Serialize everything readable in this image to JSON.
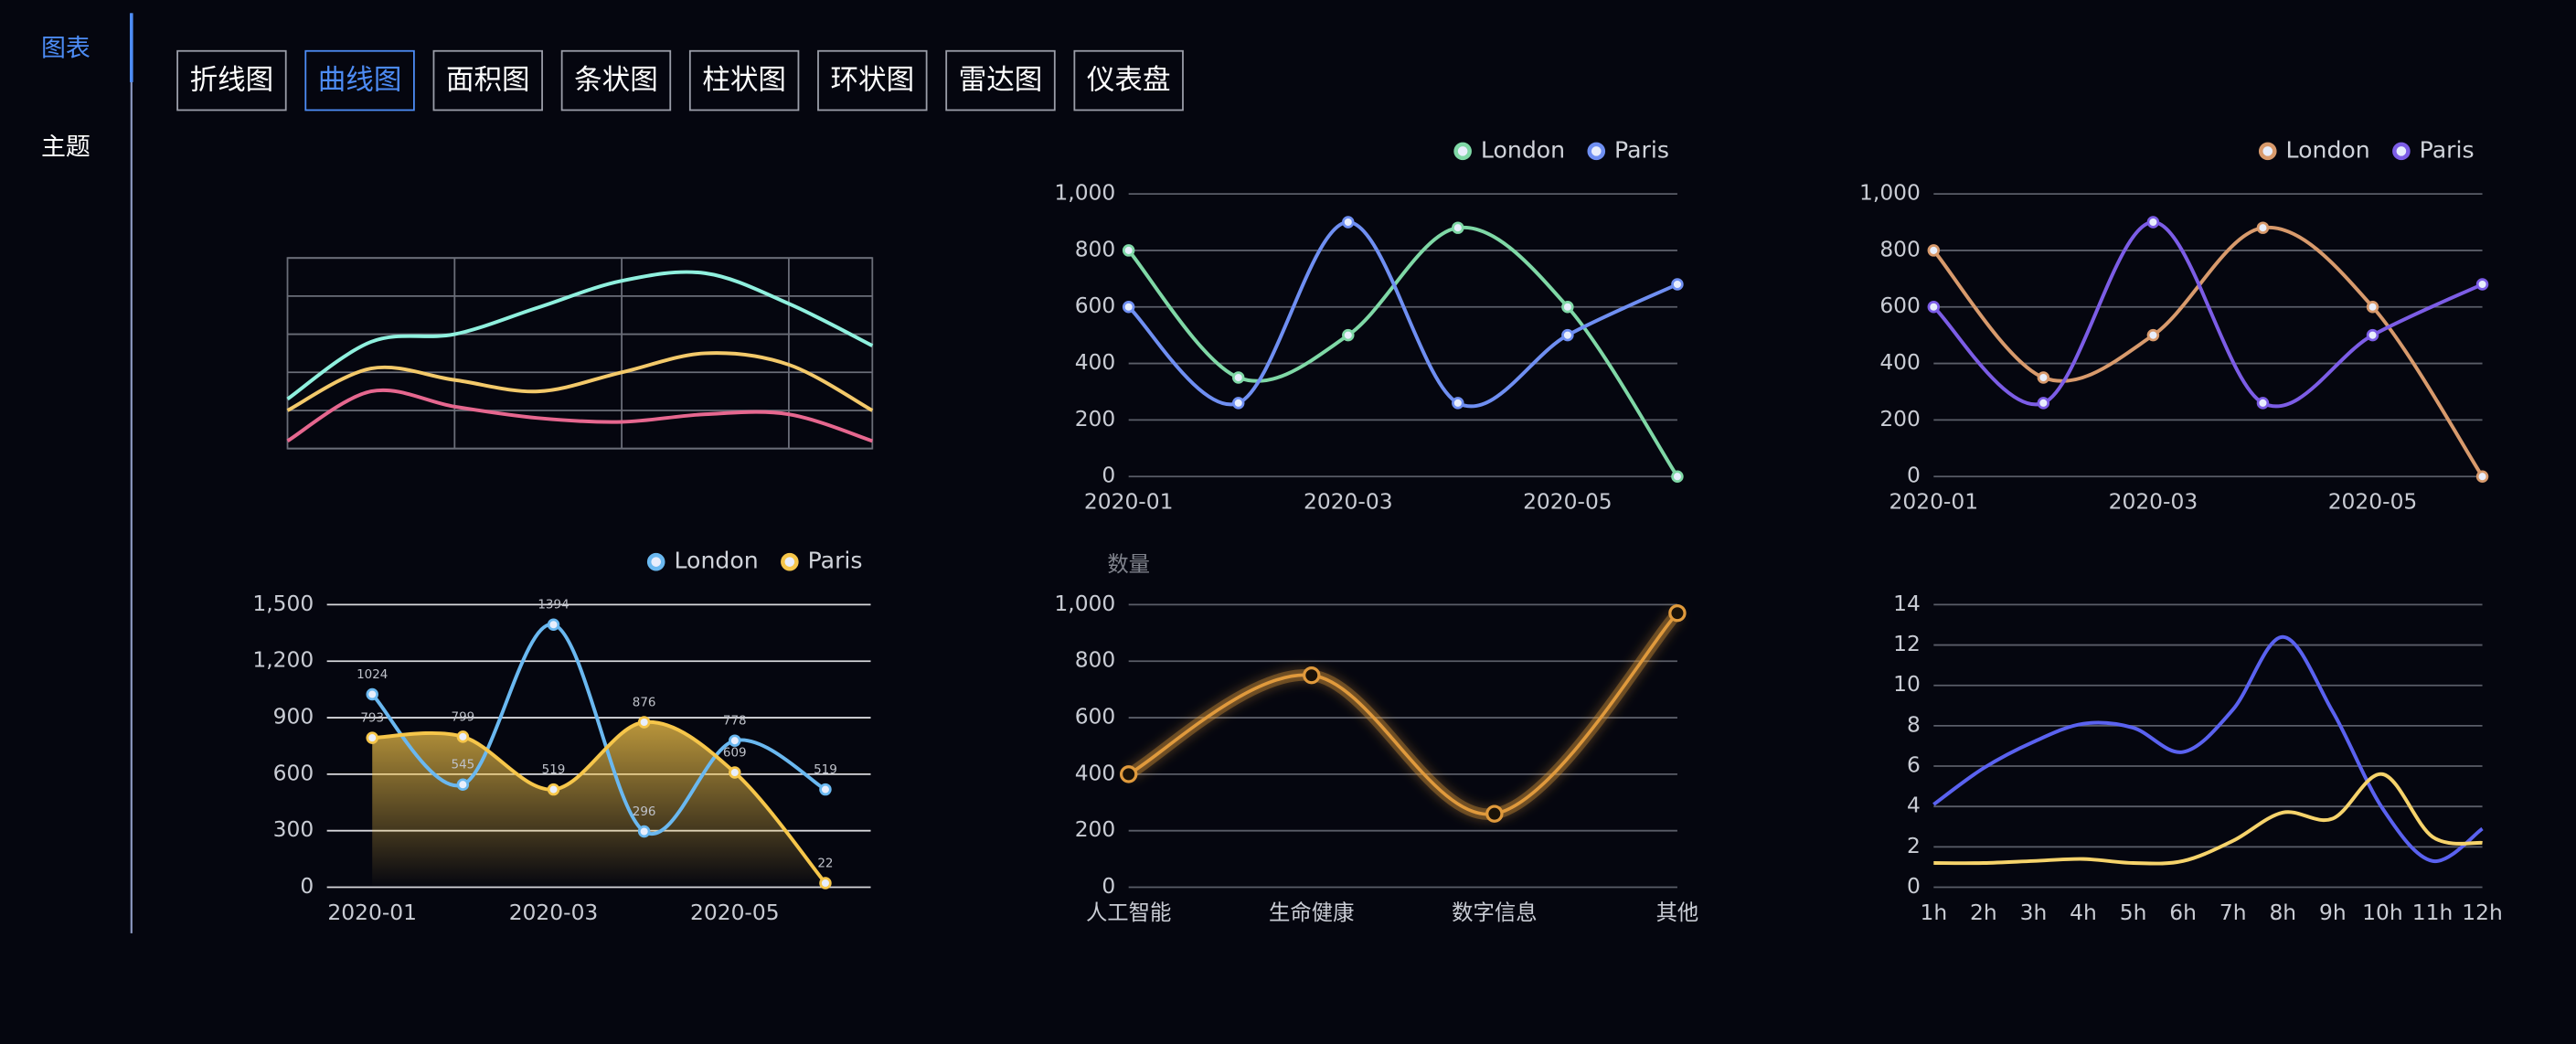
{
  "sidebar": {
    "items": [
      "图表",
      "主题"
    ],
    "active": 0
  },
  "tabs": {
    "items": [
      "折线图",
      "曲线图",
      "面积图",
      "条状图",
      "柱状图",
      "环状图",
      "雷达图",
      "仪表盘"
    ],
    "active": 1
  },
  "chart_data": [
    {
      "type": "line",
      "smooth": true,
      "grid": true,
      "frame": true,
      "tick_labels": false,
      "categories": [
        null,
        null,
        null,
        null,
        null,
        null,
        null,
        null
      ],
      "ylim": [
        0,
        5
      ],
      "yticks": [
        0,
        1,
        2,
        3,
        4,
        5
      ],
      "series": [
        {
          "color": "#8ff0de",
          "values": [
            1.3,
            2.8,
            3.0,
            3.7,
            4.4,
            4.6,
            3.8,
            2.7
          ]
        },
        {
          "color": "#f3c96a",
          "values": [
            1.0,
            2.1,
            1.8,
            1.5,
            2.0,
            2.5,
            2.2,
            1.0
          ]
        },
        {
          "color": "#e6678f",
          "values": [
            0.2,
            1.5,
            1.1,
            0.8,
            0.7,
            0.9,
            0.9,
            0.2
          ]
        }
      ]
    },
    {
      "type": "line",
      "smooth": true,
      "grid": true,
      "legend": "top-right",
      "points": "dot",
      "categories": [
        "2020-01",
        null,
        "2020-03",
        null,
        "2020-05",
        null
      ],
      "ylim": [
        0,
        1000
      ],
      "yticks": [
        0,
        200,
        400,
        600,
        800,
        {
          "value": 1000,
          "label": "1,000"
        }
      ],
      "series": [
        {
          "name": "London",
          "color": "#7fd8a6",
          "values": [
            800,
            350,
            500,
            880,
            600,
            0
          ]
        },
        {
          "name": "Paris",
          "color": "#6f8ff2",
          "values": [
            600,
            260,
            900,
            260,
            500,
            680
          ]
        }
      ]
    },
    {
      "type": "line",
      "smooth": true,
      "grid": true,
      "legend": "top-right",
      "points": "dot",
      "categories": [
        "2020-01",
        null,
        "2020-03",
        null,
        "2020-05",
        null
      ],
      "ylim": [
        0,
        1000
      ],
      "yticks": [
        0,
        200,
        400,
        600,
        800,
        {
          "value": 1000,
          "label": "1,000"
        }
      ],
      "series": [
        {
          "name": "London",
          "color": "#d89a6c",
          "values": [
            800,
            350,
            500,
            880,
            600,
            0
          ]
        },
        {
          "name": "Paris",
          "color": "#7c5de6",
          "values": [
            600,
            260,
            900,
            260,
            500,
            680
          ]
        }
      ]
    },
    {
      "type": "line",
      "smooth": true,
      "grid": true,
      "legend": "top-right",
      "points": "dot",
      "boundary_gap": true,
      "data_labels": true,
      "categories": [
        "2020-01",
        null,
        "2020-03",
        null,
        "2020-05",
        null
      ],
      "ylim": [
        0,
        1500
      ],
      "yticks": [
        0,
        300,
        600,
        900,
        {
          "value": 1200,
          "label": "1,200"
        },
        {
          "value": 1500,
          "label": "1,500"
        }
      ],
      "series": [
        {
          "name": "London",
          "color": "#6ab8f0",
          "values": [
            1024,
            545,
            1394,
            296,
            778,
            519
          ]
        },
        {
          "name": "Paris",
          "color": "#f6c64a",
          "area": true,
          "values": [
            793,
            799,
            519,
            876,
            609,
            22
          ]
        }
      ]
    },
    {
      "type": "line",
      "smooth": true,
      "grid": true,
      "points": "ring",
      "glow": true,
      "ylabel": "数量",
      "categories": [
        "人工智能",
        "生命健康",
        "数字信息",
        "其他"
      ],
      "ylim": [
        0,
        1000
      ],
      "yticks": [
        0,
        200,
        400,
        600,
        800,
        {
          "value": 1000,
          "label": "1,000"
        }
      ],
      "color": "#e09a3c",
      "values": [
        400,
        750,
        260,
        970
      ]
    },
    {
      "type": "line",
      "smooth": true,
      "grid": true,
      "categories": [
        "1h",
        "2h",
        "3h",
        "4h",
        "5h",
        "6h",
        "7h",
        "8h",
        "9h",
        "10h",
        "11h",
        "12h"
      ],
      "ylim": [
        0,
        14
      ],
      "yticks": [
        0,
        2,
        4,
        6,
        8,
        10,
        12,
        14
      ],
      "series": [
        {
          "color": "#5a62f0",
          "values": [
            4.1,
            5.9,
            7.2,
            8.1,
            7.9,
            6.7,
            8.8,
            12.4,
            8.7,
            3.9,
            1.3,
            2.9
          ]
        },
        {
          "color": "#f6d36b",
          "values": [
            1.2,
            1.2,
            1.3,
            1.4,
            1.2,
            1.3,
            2.3,
            3.7,
            3.4,
            5.6,
            2.5,
            2.2
          ]
        }
      ]
    }
  ]
}
